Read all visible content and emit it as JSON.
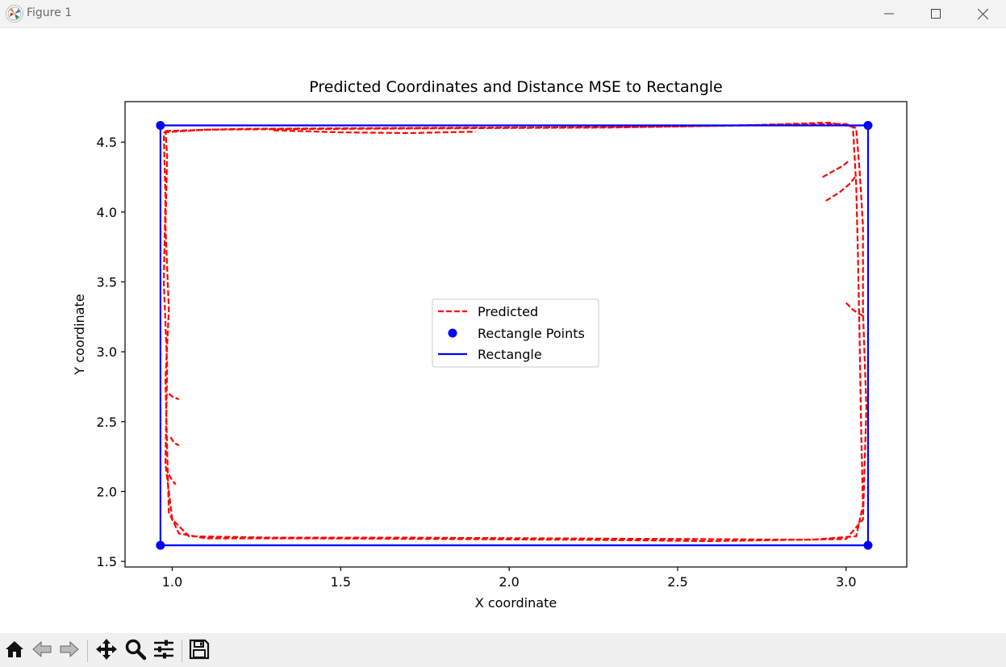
{
  "window": {
    "title": "Figure 1",
    "controls": {
      "minimize_icon": "minimize-icon",
      "maximize_icon": "maximize-icon",
      "close_icon": "close-icon"
    }
  },
  "toolbar": {
    "items": [
      "home-icon",
      "back-arrow-icon",
      "forward-arrow-icon",
      "pan-move-icon",
      "zoom-magnifier-icon",
      "configure-subplots-icon",
      "save-floppy-icon"
    ]
  },
  "chart_data": {
    "type": "line",
    "title": "Predicted Coordinates and Distance MSE to Rectangle",
    "xlabel": "X coordinate",
    "ylabel": "Y coordinate",
    "xlim": [
      0.86,
      3.18
    ],
    "ylim": [
      1.46,
      4.79
    ],
    "xticks": [
      "1.0",
      "1.5",
      "2.0",
      "2.5",
      "3.0"
    ],
    "yticks": [
      "1.5",
      "2.0",
      "2.5",
      "3.0",
      "3.5",
      "4.0",
      "4.5"
    ],
    "grid": false,
    "legend": {
      "placement": "center",
      "entries": [
        "Predicted",
        "Rectangle Points",
        "Rectangle"
      ]
    },
    "colors": {
      "predicted": "#ff0000",
      "rectangle": "#0000ff"
    },
    "series": [
      {
        "name": "Rectangle Points",
        "style": "scatter",
        "x": [
          0.965,
          3.065,
          3.065,
          0.965
        ],
        "y": [
          4.62,
          4.62,
          1.615,
          1.615
        ]
      },
      {
        "name": "Rectangle",
        "style": "solid",
        "x": [
          0.965,
          3.065,
          3.065,
          0.965,
          0.965
        ],
        "y": [
          4.62,
          4.62,
          1.615,
          1.615,
          4.62
        ]
      },
      {
        "name": "Predicted",
        "style": "dashed",
        "traces": [
          {
            "x": [
              0.98,
              1.2,
              1.6,
              2.0,
              2.4,
              2.8,
              3.0,
              3.03,
              3.04,
              3.05,
              3.05,
              3.06,
              3.05,
              3.0,
              2.6,
              2.2,
              1.8,
              1.4,
              1.1,
              1.02,
              0.99,
              0.985,
              0.98,
              0.99,
              0.98,
              0.985,
              0.98
            ],
            "y": [
              4.58,
              4.595,
              4.6,
              4.605,
              4.61,
              4.625,
              4.63,
              4.6,
              4.3,
              3.9,
              3.3,
              2.6,
              1.8,
              1.66,
              1.645,
              1.655,
              1.66,
              1.665,
              1.665,
              1.7,
              1.85,
              2.3,
              2.8,
              3.3,
              3.9,
              4.4,
              4.58
            ]
          },
          {
            "x": [
              0.975,
              1.1,
              1.5,
              1.9,
              2.3,
              2.7,
              2.95,
              3.02,
              3.03,
              3.035,
              3.04,
              3.045,
              3.05,
              3.03,
              2.9,
              2.5,
              2.1,
              1.7,
              1.3,
              1.05,
              1.0,
              0.98,
              0.985,
              0.975,
              0.98,
              0.975
            ],
            "y": [
              4.57,
              4.59,
              4.595,
              4.6,
              4.605,
              4.62,
              4.64,
              4.61,
              4.2,
              3.7,
              3.1,
              2.4,
              1.9,
              1.68,
              1.655,
              1.66,
              1.665,
              1.67,
              1.67,
              1.68,
              1.8,
              2.2,
              2.9,
              3.5,
              4.1,
              4.57
            ]
          },
          {
            "x": [
              1.3,
              1.5,
              1.7,
              1.9
            ],
            "y": [
              4.585,
              4.57,
              4.565,
              4.575
            ]
          },
          {
            "x": [
              2.93,
              2.96,
              2.99,
              3.01
            ],
            "y": [
              4.25,
              4.29,
              4.33,
              4.37
            ]
          },
          {
            "x": [
              2.94,
              2.98,
              3.01,
              3.03
            ],
            "y": [
              4.08,
              4.14,
              4.2,
              4.26
            ]
          },
          {
            "x": [
              0.99,
              1.0,
              1.02
            ],
            "y": [
              2.7,
              2.68,
              2.66
            ]
          },
          {
            "x": [
              0.995,
              1.005,
              1.02
            ],
            "y": [
              2.39,
              2.35,
              2.33
            ]
          },
          {
            "x": [
              0.99,
              1.0,
              1.01
            ],
            "y": [
              2.12,
              2.08,
              2.05
            ]
          },
          {
            "x": [
              3.0,
              3.02,
              3.04,
              3.055
            ],
            "y": [
              3.35,
              3.3,
              3.27,
              3.25
            ]
          }
        ]
      }
    ]
  }
}
